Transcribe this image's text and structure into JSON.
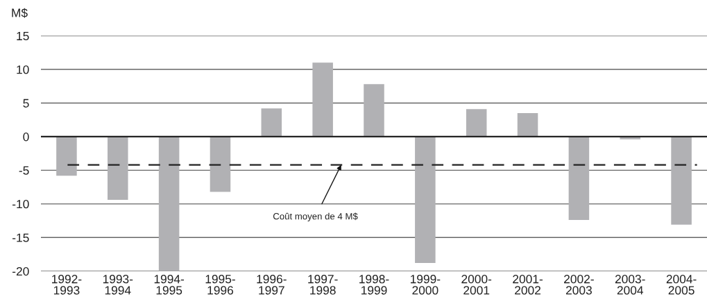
{
  "chart_data": {
    "type": "bar",
    "ylabel": "M$",
    "categories": [
      "1992-\n1993",
      "1993-\n1994",
      "1994-\n1995",
      "1995-\n1996",
      "1996-\n1997",
      "1997-\n1998",
      "1998-\n1999",
      "1999-\n2000",
      "2000-\n2001",
      "2001-\n2002",
      "2002-\n2003",
      "2003-\n2004",
      "2004-\n2005"
    ],
    "values": [
      -5.8,
      -9.4,
      -20,
      -8.2,
      4.2,
      11.0,
      7.8,
      -18.8,
      4.1,
      3.5,
      -12.4,
      -0.4,
      -13.1
    ],
    "color": "#b1b1b4",
    "ylim": [
      -20,
      15
    ],
    "yticks": [
      -20,
      -15,
      -10,
      -5,
      0,
      5,
      10,
      15
    ],
    "grid": "y",
    "ref_lines": [
      {
        "axis": "y",
        "value": -4.2,
        "label": "Coût moyen de 4 M$",
        "color": "#222222",
        "line_style": "dashed"
      }
    ]
  }
}
